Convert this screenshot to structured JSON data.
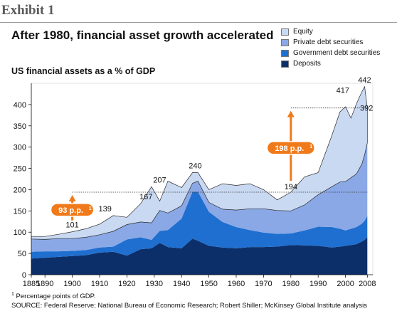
{
  "header": {
    "exhibit": "Exhibit 1",
    "title": "After 1980, financial asset growth accelerated",
    "subtitle": "US financial assets as a % of GDP"
  },
  "footnote": {
    "mark": "1",
    "text": "Percentage points of GDP.",
    "source": "SOURCE: Federal Reserve; National Bureau of Economic Research; Robert Shiller; McKinsey Global Institute analysis"
  },
  "colors": {
    "equity": "#c9d9f2",
    "private": "#8aa8e6",
    "government": "#1f6fd0",
    "deposits": "#0c2f6a",
    "arrow": "#f07a1a"
  },
  "chart_data": {
    "type": "area",
    "stacked": true,
    "title": "US financial assets as a % of GDP",
    "ylim": [
      0,
      450
    ],
    "xlim": [
      1885,
      2010
    ],
    "yticks": [
      0,
      50,
      100,
      150,
      200,
      250,
      300,
      350,
      400
    ],
    "xticks": [
      "1885",
      "1890",
      "1900",
      "1910",
      "1920",
      "1930",
      "1940",
      "1950",
      "1960",
      "1970",
      "1980",
      "1990",
      "2000",
      "2008"
    ],
    "x": [
      1885,
      1890,
      1895,
      1900,
      1905,
      1910,
      1915,
      1920,
      1925,
      1929,
      1932,
      1935,
      1940,
      1944,
      1946,
      1950,
      1955,
      1960,
      1965,
      1970,
      1975,
      1980,
      1985,
      1990,
      1995,
      1998,
      2000,
      2002,
      2004,
      2006,
      2007,
      2008
    ],
    "series": [
      {
        "name": "Deposits",
        "values": [
          38,
          40,
          42,
          44,
          46,
          52,
          54,
          45,
          60,
          62,
          75,
          65,
          62,
          85,
          80,
          68,
          64,
          62,
          65,
          65,
          66,
          70,
          69,
          68,
          64,
          66,
          68,
          70,
          72,
          78,
          82,
          88
        ]
      },
      {
        "name": "Government debt securities",
        "values": [
          16,
          15,
          13,
          12,
          12,
          12,
          12,
          38,
          28,
          20,
          28,
          40,
          70,
          110,
          115,
          80,
          60,
          50,
          40,
          34,
          30,
          27,
          35,
          45,
          48,
          42,
          36,
          38,
          40,
          42,
          45,
          50
        ]
      },
      {
        "name": "Private debt securities",
        "values": [
          30,
          28,
          30,
          29,
          30,
          30,
          36,
          35,
          36,
          40,
          48,
          40,
          30,
          20,
          25,
          22,
          30,
          40,
          50,
          56,
          55,
          53,
          60,
          75,
          95,
          110,
          115,
          120,
          125,
          140,
          155,
          172
        ]
      },
      {
        "name": "Equity",
        "values": [
          6,
          7,
          10,
          16,
          20,
          25,
          37,
          17,
          43,
          85,
          22,
          75,
          43,
          25,
          20,
          30,
          60,
          58,
          59,
          45,
          25,
          44,
          66,
          52,
          120,
          165,
          176,
          140,
          165,
          170,
          160,
          82
        ]
      }
    ],
    "annotations": {
      "totals": [
        {
          "x": 1900,
          "label": "101"
        },
        {
          "x": 1912,
          "label": "139"
        },
        {
          "x": 1927,
          "label": "167"
        },
        {
          "x": 1932,
          "label": "207"
        },
        {
          "x": 1945,
          "label": "240"
        },
        {
          "x": 1980,
          "label": "194"
        },
        {
          "x": 1999,
          "label": "417"
        },
        {
          "x": 2007,
          "label": "442"
        },
        {
          "x": 2008,
          "label": "392"
        }
      ],
      "reference_lines": [
        {
          "y": 194,
          "from": 1900,
          "to": 2008
        },
        {
          "y": 392,
          "from": 1980,
          "to": 2008
        }
      ],
      "arrows": [
        {
          "x": 1900,
          "from": 101,
          "to": 194,
          "label": "93 p.p.",
          "sup": "1"
        },
        {
          "x": 1980,
          "from": 194,
          "to": 392,
          "label": "198 p.p.",
          "sup": "1"
        }
      ]
    }
  }
}
